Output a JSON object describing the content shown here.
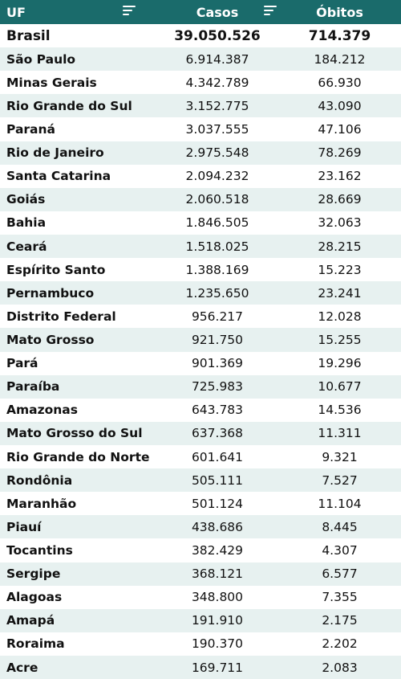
{
  "header": {
    "uf": "UF",
    "casos": "Casos",
    "obitos": "Óbitos"
  },
  "icons": {
    "filter": "filter-icon"
  },
  "colors": {
    "header_bg": "#1a6b6b",
    "stripe": "#e7f1f0"
  },
  "total": {
    "name": "Brasil",
    "casos": "39.050.526",
    "obitos": "714.379"
  },
  "rows": [
    {
      "name": "São Paulo",
      "casos": "6.914.387",
      "obitos": "184.212"
    },
    {
      "name": "Minas Gerais",
      "casos": "4.342.789",
      "obitos": "66.930"
    },
    {
      "name": "Rio Grande do Sul",
      "casos": "3.152.775",
      "obitos": "43.090"
    },
    {
      "name": "Paraná",
      "casos": "3.037.555",
      "obitos": "47.106"
    },
    {
      "name": "Rio de Janeiro",
      "casos": "2.975.548",
      "obitos": "78.269"
    },
    {
      "name": "Santa Catarina",
      "casos": "2.094.232",
      "obitos": "23.162"
    },
    {
      "name": "Goiás",
      "casos": "2.060.518",
      "obitos": "28.669"
    },
    {
      "name": "Bahia",
      "casos": "1.846.505",
      "obitos": "32.063"
    },
    {
      "name": "Ceará",
      "casos": "1.518.025",
      "obitos": "28.215"
    },
    {
      "name": "Espírito Santo",
      "casos": "1.388.169",
      "obitos": "15.223"
    },
    {
      "name": "Pernambuco",
      "casos": "1.235.650",
      "obitos": "23.241"
    },
    {
      "name": "Distrito Federal",
      "casos": "956.217",
      "obitos": "12.028"
    },
    {
      "name": "Mato Grosso",
      "casos": "921.750",
      "obitos": "15.255"
    },
    {
      "name": "Pará",
      "casos": "901.369",
      "obitos": "19.296"
    },
    {
      "name": "Paraíba",
      "casos": "725.983",
      "obitos": "10.677"
    },
    {
      "name": "Amazonas",
      "casos": "643.783",
      "obitos": "14.536"
    },
    {
      "name": "Mato Grosso do Sul",
      "casos": "637.368",
      "obitos": "11.311"
    },
    {
      "name": "Rio Grande do Norte",
      "casos": "601.641",
      "obitos": "9.321"
    },
    {
      "name": "Rondônia",
      "casos": "505.111",
      "obitos": "7.527"
    },
    {
      "name": "Maranhão",
      "casos": "501.124",
      "obitos": "11.104"
    },
    {
      "name": "Piauí",
      "casos": "438.686",
      "obitos": "8.445"
    },
    {
      "name": "Tocantins",
      "casos": "382.429",
      "obitos": "4.307"
    },
    {
      "name": "Sergipe",
      "casos": "368.121",
      "obitos": "6.577"
    },
    {
      "name": "Alagoas",
      "casos": "348.800",
      "obitos": "7.355"
    },
    {
      "name": "Amapá",
      "casos": "191.910",
      "obitos": "2.175"
    },
    {
      "name": "Roraima",
      "casos": "190.370",
      "obitos": "2.202"
    },
    {
      "name": "Acre",
      "casos": "169.711",
      "obitos": "2.083"
    }
  ]
}
